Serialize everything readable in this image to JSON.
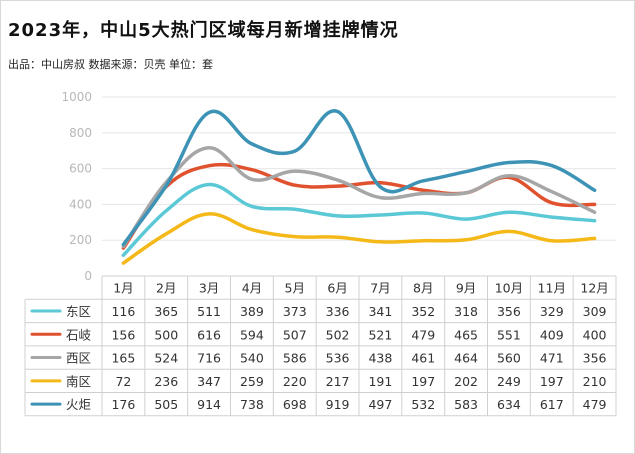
{
  "title": "2023年，中山5大热门区域每月新增挂牌情况",
  "subtitle": "出品：中山房叔   数据来源：贝壳  单位：套",
  "chart_data": {
    "type": "line",
    "smooth": true,
    "categories": [
      "1月",
      "2月",
      "3月",
      "4月",
      "5月",
      "6月",
      "7月",
      "8月",
      "9月",
      "10月",
      "11月",
      "12月"
    ],
    "ylim": [
      0,
      1000
    ],
    "yticks": [
      0,
      200,
      400,
      600,
      800,
      1000
    ],
    "grid": true,
    "legend": "data-table-left",
    "series": [
      {
        "name": "东区",
        "color": "#5bc8d6",
        "values": [
          116,
          365,
          511,
          389,
          373,
          336,
          341,
          352,
          318,
          356,
          329,
          309
        ]
      },
      {
        "name": "石岐",
        "color": "#e0522e",
        "values": [
          156,
          500,
          616,
          594,
          507,
          502,
          521,
          479,
          465,
          551,
          409,
          400
        ]
      },
      {
        "name": "西区",
        "color": "#a6a6a6",
        "values": [
          165,
          524,
          716,
          540,
          586,
          536,
          438,
          461,
          464,
          560,
          471,
          356
        ]
      },
      {
        "name": "南区",
        "color": "#f5b819",
        "values": [
          72,
          236,
          347,
          259,
          220,
          217,
          191,
          197,
          202,
          249,
          197,
          210
        ]
      },
      {
        "name": "火炬",
        "color": "#3d93b5",
        "values": [
          176,
          505,
          914,
          738,
          698,
          919,
          497,
          532,
          583,
          634,
          617,
          479
        ]
      }
    ]
  }
}
